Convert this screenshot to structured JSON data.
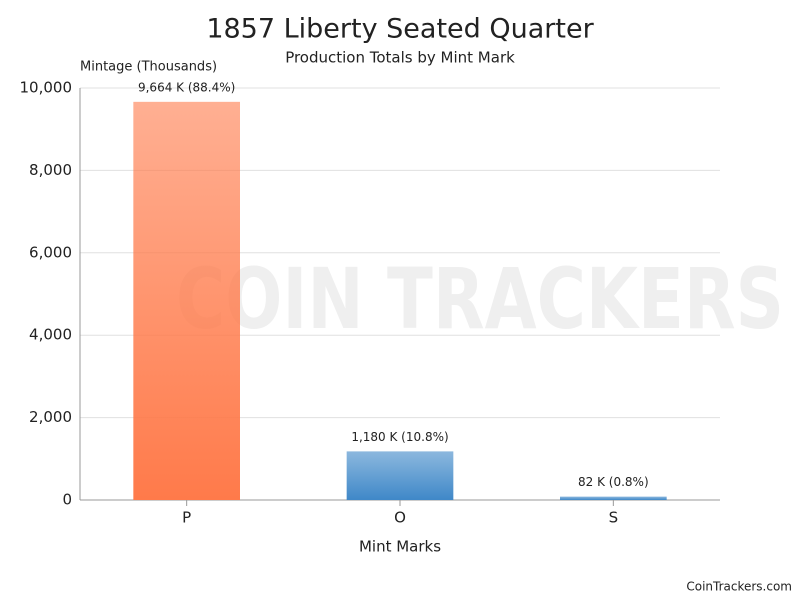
{
  "chart_data": {
    "type": "bar",
    "title": "1857 Liberty Seated Quarter",
    "subtitle": "Production Totals by Mint Mark",
    "y_label": "Mintage (Thousands)",
    "x_label": "Mint Marks",
    "categories": [
      "P",
      "O",
      "S"
    ],
    "values": [
      9664,
      1180,
      82
    ],
    "value_labels": [
      "9,664 K (88.4%)",
      "1,180 K (10.8%)",
      "82 K (0.8%)"
    ],
    "colors": [
      "#ff7a4a",
      "#3f88c8",
      "#3f88c8"
    ],
    "ylim": [
      0,
      10000
    ],
    "yticks": [
      0,
      {
        "value": 2000,
        "label": "2,000"
      },
      {
        "value": 4000,
        "label": "4,000"
      },
      {
        "value": 6000,
        "label": "6,000"
      },
      {
        "value": 8000,
        "label": "8,000"
      },
      {
        "value": 10000,
        "label": "10,000"
      }
    ],
    "grid": true,
    "watermark": "COIN TRACKERS",
    "credit": "CoinTrackers.com"
  }
}
